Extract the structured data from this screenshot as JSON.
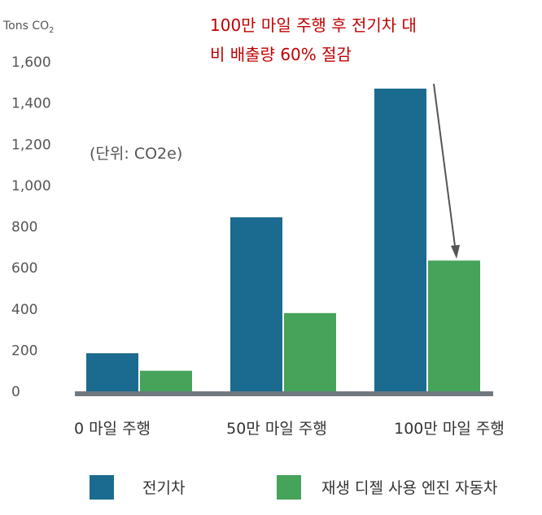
{
  "chart_data": {
    "type": "bar",
    "title": "",
    "ylabel": "Tons CO",
    "ylabel_subscript": "2",
    "unit_note": "(단위: CO2e)",
    "annotation_lines": [
      "100만 마일 주행 후 전기차 대",
      "비 배출량 60% 절감"
    ],
    "categories": [
      "0 마일 주행",
      "50만 마일 주행",
      "100만 마일 주행"
    ],
    "ylim": [
      0,
      1600
    ],
    "yticks": [
      0,
      200,
      400,
      600,
      800,
      1000,
      1200,
      1400,
      1600
    ],
    "ytick_labels": [
      "0",
      "200",
      "400",
      "600",
      "800",
      "1,000",
      "1,200",
      "1,400",
      "1,600"
    ],
    "series": [
      {
        "name": "전기차",
        "color": "#1a6b8f",
        "values": [
          185,
          845,
          1470
        ]
      },
      {
        "name": "재생 디젤 사용 엔진 자동차",
        "color": "#45a35a",
        "values": [
          100,
          380,
          635
        ]
      }
    ],
    "grid": false,
    "legend_position": "bottom",
    "axis_color": "#707880"
  }
}
